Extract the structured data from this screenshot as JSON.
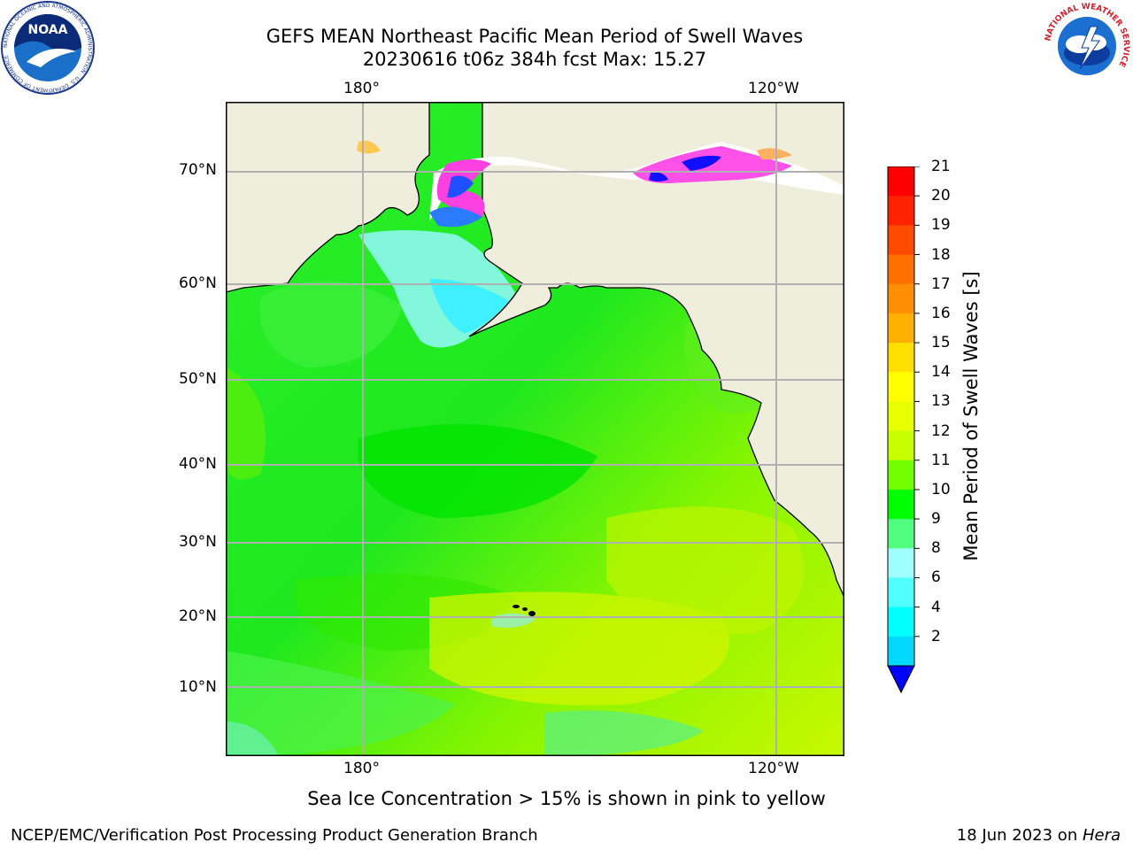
{
  "title_line1": "GEFS MEAN Northeast Pacific Mean Period of Swell Waves",
  "title_line2": "20230616 t06z 384h fcst   Max: 15.27",
  "map": {
    "lon_labels_top": [
      "180°",
      "120°W"
    ],
    "lon_labels_bottom": [
      "180°",
      "120°W"
    ],
    "lat_labels": [
      "70°N",
      "60°N",
      "50°N",
      "40°N",
      "30°N",
      "20°N",
      "10°N"
    ]
  },
  "colorbar": {
    "label": "Mean Period of Swell Waves [s]",
    "ticks": [
      "21",
      "20",
      "19",
      "18",
      "17",
      "16",
      "15",
      "14",
      "13",
      "12",
      "11",
      "10",
      "9",
      "8",
      "6",
      "4",
      "2"
    ],
    "colors": [
      "#ff0000",
      "#ff2200",
      "#ff4a00",
      "#ff6f00",
      "#ff8f00",
      "#ffb000",
      "#ffe000",
      "#ffff00",
      "#e8ff00",
      "#c7ff00",
      "#73ff00",
      "#00ff00",
      "#50ff80",
      "#a0ffff",
      "#50ffff",
      "#00ffff",
      "#00d8ff",
      "#0070ff"
    ],
    "extend_color": "#0000ff"
  },
  "legend_note": "Sea Ice Concentration > 15% is shown in pink to yellow",
  "footer_left": "NCEP/EMC/Verification Post Processing Product Generation Branch",
  "footer_right_date": "18 Jun 2023 on ",
  "footer_right_host": "Hera",
  "logos": {
    "noaa_text": "NOAA",
    "noaa_ring": "NATIONAL OCEANIC AND ATMOSPHERIC ADMINISTRATION · U.S. DEPARTMENT OF COMMERCE",
    "nws_ring": "NATIONAL WEATHER SERVICE"
  }
}
